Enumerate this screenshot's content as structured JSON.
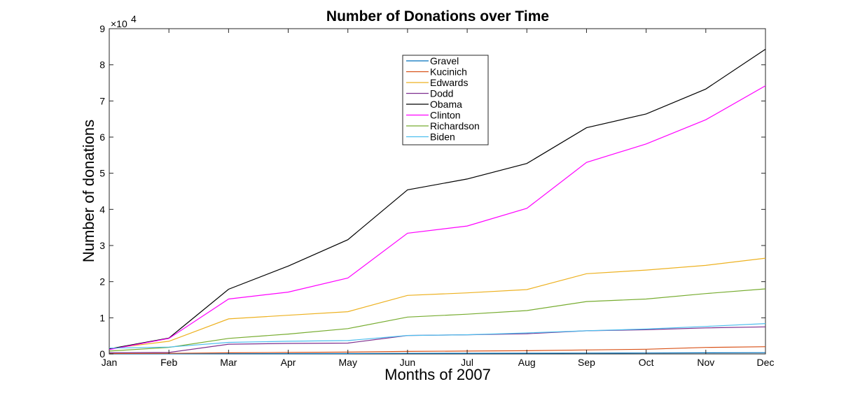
{
  "chart_data": {
    "type": "line",
    "title": "Number of Donations over Time",
    "xlabel": "Months of 2007",
    "ylabel": "Number of donations",
    "exponent_base": "×10",
    "exponent_power": "4",
    "categories": [
      "Jan",
      "Feb",
      "Mar",
      "Apr",
      "May",
      "Jun",
      "Jul",
      "Aug",
      "Sep",
      "Oct",
      "Nov",
      "Dec"
    ],
    "ylim": [
      0,
      90000
    ],
    "yticks": [
      0,
      10000,
      20000,
      30000,
      40000,
      50000,
      60000,
      70000,
      80000,
      90000
    ],
    "ytick_labels": [
      "0",
      "1",
      "2",
      "3",
      "4",
      "5",
      "6",
      "7",
      "8",
      "9"
    ],
    "grid": false,
    "legend_position": "top-center",
    "series": [
      {
        "name": "Gravel",
        "color": "#0072BD",
        "values": [
          0,
          20,
          50,
          80,
          100,
          150,
          170,
          200,
          230,
          260,
          300,
          350
        ]
      },
      {
        "name": "Kucinich",
        "color": "#D95319",
        "values": [
          100,
          150,
          300,
          400,
          500,
          700,
          800,
          900,
          1100,
          1300,
          1800,
          2000
        ]
      },
      {
        "name": "Edwards",
        "color": "#EDB120",
        "values": [
          1500,
          3500,
          9700,
          10700,
          11700,
          16200,
          16900,
          17800,
          22200,
          23200,
          24500,
          26500
        ]
      },
      {
        "name": "Dodd",
        "color": "#7E2F8E",
        "values": [
          300,
          400,
          2700,
          2900,
          3000,
          5100,
          5300,
          5600,
          6400,
          6700,
          7200,
          7500
        ]
      },
      {
        "name": "Obama",
        "color": "#000000",
        "values": [
          1400,
          4400,
          17900,
          24300,
          31600,
          45400,
          48400,
          52700,
          62600,
          66400,
          73300,
          84300
        ]
      },
      {
        "name": "Clinton",
        "color": "#FF00FF",
        "values": [
          1200,
          4300,
          15200,
          17100,
          21000,
          33400,
          35400,
          40300,
          53000,
          58100,
          64800,
          74200
        ]
      },
      {
        "name": "Richardson",
        "color": "#77AC30",
        "values": [
          800,
          1800,
          4300,
          5500,
          7000,
          10200,
          11000,
          12000,
          14500,
          15200,
          16700,
          18000
        ]
      },
      {
        "name": "Biden",
        "color": "#4DBEEE",
        "values": [
          1600,
          1900,
          3200,
          3500,
          3700,
          5100,
          5300,
          5800,
          6400,
          6900,
          7600,
          8400
        ]
      }
    ]
  }
}
